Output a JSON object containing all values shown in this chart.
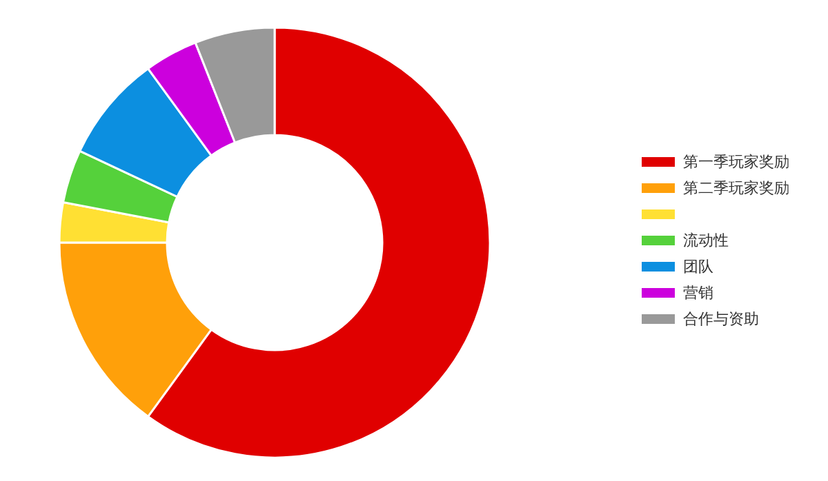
{
  "chart_data": {
    "type": "donut",
    "categories": [
      "第一季玩家奖励",
      "第二季玩家奖励",
      null,
      "流动性",
      "团队",
      "营销",
      "合作与资助"
    ],
    "values": [
      60,
      15,
      3,
      4,
      8,
      4,
      6
    ],
    "colors": [
      "#e00000",
      "#ffa00a",
      "#ffe033",
      "#55d13b",
      "#0c8fe0",
      "#cc00dd",
      "#999999"
    ],
    "legend": "right"
  }
}
